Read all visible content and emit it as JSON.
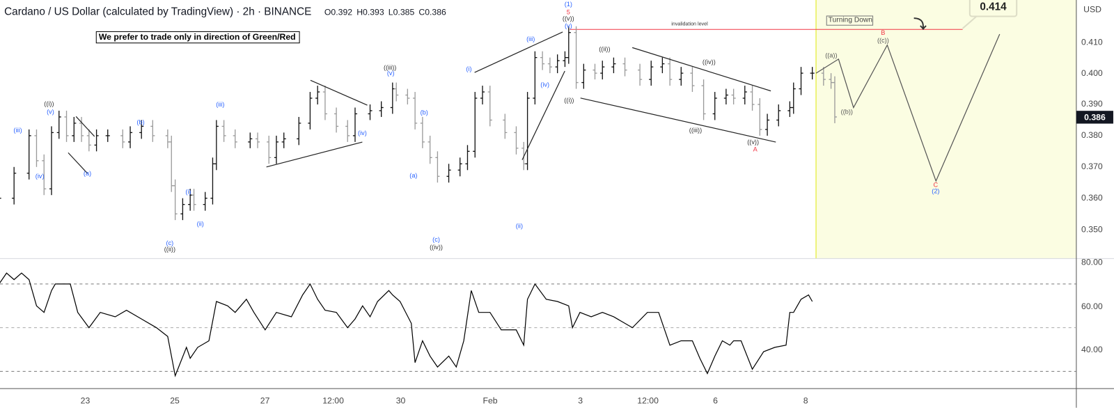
{
  "header": {
    "title": "Cardano / US Dollar (calculated by TradingView) · 2h · BINANCE",
    "open": "O0.392",
    "high": "H0.393",
    "low": "L0.385",
    "close": "C0.386"
  },
  "note": "We prefer to trade only in direction of Green/Red",
  "annotations": {
    "invalidation_label": "invalidation level",
    "invalidation_price": 0.414,
    "target_callout": "0.414",
    "turning_label": "Turning Down",
    "arrow_icon": "curved-arrow-down-right",
    "highlight_color": "#fbfde2",
    "invalidation_color": "#f23645",
    "wave_labels": [
      "(iii)",
      "(iv)",
      "((i))",
      "(v)",
      "(a)",
      "(b)",
      "(iii)",
      "(i)",
      "(ii)",
      "(c)",
      "((ii))",
      "((iii))",
      "(v)",
      "(iv)",
      "(a)",
      "(b)",
      "(c)",
      "((iv))",
      "(i)",
      "(iii)",
      "(iv)",
      "(ii)",
      "(1)",
      "5",
      "((v))",
      "(v)",
      "((i))",
      "((ii))",
      "((iv))",
      "((iii))",
      "((v))",
      "A",
      "((a))",
      "((b))",
      "((c))",
      "B",
      "C",
      "(2)"
    ]
  },
  "chart_data": [
    {
      "type": "ohlc",
      "title": "Cardano / US Dollar (calculated by TradingView) · 2h · BINANCE",
      "y_unit": "USD",
      "ylim": [
        0.343,
        0.418
      ],
      "y_ticks": [
        "0.410",
        "0.400",
        "0.390",
        "0.380",
        "0.370",
        "0.360",
        "0.350"
      ],
      "x_ticks": [
        "23",
        "25",
        "27",
        "12:00",
        "30",
        "Feb",
        "3",
        "12:00",
        "6",
        "8"
      ],
      "last_price": "0.386",
      "closes": [
        [
          "Jan 21 02:00",
          0.36
        ],
        [
          "Jan 21 10:00",
          0.368
        ],
        [
          "Jan 21 18:00",
          0.38
        ],
        [
          "Jan 21 22:00",
          0.372
        ],
        [
          "Jan 22 02:00",
          0.363
        ],
        [
          "Jan 22 06:00",
          0.381
        ],
        [
          "Jan 22 10:00",
          0.386
        ],
        [
          "Jan 22 14:00",
          0.38
        ],
        [
          "Jan 22 18:00",
          0.384
        ],
        [
          "Jan 22 22:00",
          0.38
        ],
        [
          "Jan 23 02:00",
          0.377
        ],
        [
          "Jan 23 06:00",
          0.38
        ],
        [
          "Jan 23 12:00",
          0.38
        ],
        [
          "Jan 23 20:00",
          0.378
        ],
        [
          "Jan 24 00:00",
          0.381
        ],
        [
          "Jan 24 06:00",
          0.383
        ],
        [
          "Jan 24 12:00",
          0.38
        ],
        [
          "Jan 24 20:00",
          0.378
        ],
        [
          "Jan 24 22:00",
          0.364
        ],
        [
          "Jan 25 00:00",
          0.355
        ],
        [
          "Jan 25 04:00",
          0.358
        ],
        [
          "Jan 25 08:00",
          0.361
        ],
        [
          "Jan 25 10:00",
          0.358
        ],
        [
          "Jan 25 16:00",
          0.36
        ],
        [
          "Jan 25 20:00",
          0.371
        ],
        [
          "Jan 25 22:00",
          0.383
        ],
        [
          "Jan 26 02:00",
          0.38
        ],
        [
          "Jan 26 08:00",
          0.378
        ],
        [
          "Jan 26 16:00",
          0.379
        ],
        [
          "Jan 26 20:00",
          0.378
        ],
        [
          "Jan 27 02:00",
          0.373
        ],
        [
          "Jan 27 06:00",
          0.378
        ],
        [
          "Jan 27 10:00",
          0.379
        ],
        [
          "Jan 27 18:00",
          0.384
        ],
        [
          "Jan 28 00:00",
          0.392
        ],
        [
          "Jan 28 04:00",
          0.394
        ],
        [
          "Jan 28 08:00",
          0.387
        ],
        [
          "Jan 28 14:00",
          0.383
        ],
        [
          "Jan 28 20:00",
          0.38
        ],
        [
          "Jan 29 00:00",
          0.387
        ],
        [
          "Jan 29 08:00",
          0.388
        ],
        [
          "Jan 29 14:00",
          0.389
        ],
        [
          "Jan 29 20:00",
          0.395
        ],
        [
          "Jan 29 22:00",
          0.393
        ],
        [
          "Jan 30 04:00",
          0.392
        ],
        [
          "Jan 30 08:00",
          0.384
        ],
        [
          "Jan 30 12:00",
          0.378
        ],
        [
          "Jan 30 16:00",
          0.373
        ],
        [
          "Jan 30 20:00",
          0.367
        ],
        [
          "Jan 31 02:00",
          0.369
        ],
        [
          "Jan 31 08:00",
          0.371
        ],
        [
          "Jan 31 12:00",
          0.375
        ],
        [
          "Jan 31 16:00",
          0.392
        ],
        [
          "Jan 31 20:00",
          0.394
        ],
        [
          "Feb 1 00:00",
          0.385
        ],
        [
          "Feb 1 08:00",
          0.381
        ],
        [
          "Feb 1 14:00",
          0.376
        ],
        [
          "Feb 1 18:00",
          0.371
        ],
        [
          "Feb 1 20:00",
          0.392
        ],
        [
          "Feb 2 00:00",
          0.405
        ],
        [
          "Feb 2 04:00",
          0.403
        ],
        [
          "Feb 2 08:00",
          0.402
        ],
        [
          "Feb 2 12:00",
          0.404
        ],
        [
          "Feb 2 16:00",
          0.405
        ],
        [
          "Feb 2 18:00",
          0.413
        ],
        [
          "Feb 2 22:00",
          0.397
        ],
        [
          "Feb 3 02:00",
          0.401
        ],
        [
          "Feb 3 08:00",
          0.4
        ],
        [
          "Feb 3 12:00",
          0.402
        ],
        [
          "Feb 3 18:00",
          0.403
        ],
        [
          "Feb 4 00:00",
          0.401
        ],
        [
          "Feb 4 08:00",
          0.398
        ],
        [
          "Feb 4 14:00",
          0.402
        ],
        [
          "Feb 4 20:00",
          0.403
        ],
        [
          "Feb 5 00:00",
          0.398
        ],
        [
          "Feb 5 06:00",
          0.4
        ],
        [
          "Feb 5 12:00",
          0.396
        ],
        [
          "Feb 5 18:00",
          0.387
        ],
        [
          "Feb 6 00:00",
          0.392
        ],
        [
          "Feb 6 06:00",
          0.393
        ],
        [
          "Feb 6 10:00",
          0.392
        ],
        [
          "Feb 6 16:00",
          0.394
        ],
        [
          "Feb 6 20:00",
          0.39
        ],
        [
          "Feb 7 00:00",
          0.382
        ],
        [
          "Feb 7 04:00",
          0.385
        ],
        [
          "Feb 7 10:00",
          0.388
        ],
        [
          "Feb 7 16:00",
          0.389
        ],
        [
          "Feb 7 18:00",
          0.395
        ],
        [
          "Feb 7 22:00",
          0.4
        ],
        [
          "Feb 8 04:00",
          0.4
        ],
        [
          "Feb 8 10:00",
          0.398
        ],
        [
          "Feb 8 14:00",
          0.397
        ],
        [
          "Feb 8 16:00",
          0.386
        ]
      ],
      "projection": [
        [
          "Feb 8 06:00",
          0.4
        ],
        [
          "Feb 8 18:00",
          0.4045
        ],
        [
          "Feb 9 02:00",
          0.389
        ],
        [
          "Feb 9 20:00",
          0.409
        ],
        [
          "Feb 10 22:00",
          0.3655
        ],
        [
          "Feb 12 08:00",
          0.4125
        ]
      ],
      "highlight_from": "Feb 8 06:00"
    },
    {
      "type": "line",
      "indicator": "RSI",
      "ylim": [
        22,
        84
      ],
      "y_ticks": [
        "80.00",
        "60.00",
        "40.00"
      ],
      "levels": [
        70,
        50,
        30
      ],
      "values": [
        [
          "Jan 21 02:00",
          70
        ],
        [
          "Jan 21 06:00",
          75
        ],
        [
          "Jan 21 10:00",
          72
        ],
        [
          "Jan 21 14:00",
          75
        ],
        [
          "Jan 21 18:00",
          72
        ],
        [
          "Jan 21 22:00",
          60
        ],
        [
          "Jan 22 02:00",
          57
        ],
        [
          "Jan 22 06:00",
          67
        ],
        [
          "Jan 22 08:00",
          70
        ],
        [
          "Jan 22 16:00",
          70
        ],
        [
          "Jan 22 20:00",
          57
        ],
        [
          "Jan 23 02:00",
          50
        ],
        [
          "Jan 23 08:00",
          57
        ],
        [
          "Jan 23 16:00",
          55
        ],
        [
          "Jan 23 22:00",
          58
        ],
        [
          "Jan 24 06:00",
          54
        ],
        [
          "Jan 24 14:00",
          50
        ],
        [
          "Jan 24 20:00",
          46
        ],
        [
          "Jan 25 00:00",
          28
        ],
        [
          "Jan 25 06:00",
          41
        ],
        [
          "Jan 25 08:00",
          36
        ],
        [
          "Jan 25 12:00",
          41
        ],
        [
          "Jan 25 18:00",
          44
        ],
        [
          "Jan 25 22:00",
          62
        ],
        [
          "Jan 26 04:00",
          60
        ],
        [
          "Jan 26 08:00",
          57
        ],
        [
          "Jan 26 14:00",
          63
        ],
        [
          "Jan 26 18:00",
          57
        ],
        [
          "Jan 27 00:00",
          49
        ],
        [
          "Jan 27 06:00",
          57
        ],
        [
          "Jan 27 14:00",
          55
        ],
        [
          "Jan 27 20:00",
          65
        ],
        [
          "Jan 28 00:00",
          70
        ],
        [
          "Jan 28 04:00",
          63
        ],
        [
          "Jan 28 08:00",
          58
        ],
        [
          "Jan 28 14:00",
          57
        ],
        [
          "Jan 28 20:00",
          50
        ],
        [
          "Jan 29 00:00",
          54
        ],
        [
          "Jan 29 04:00",
          60
        ],
        [
          "Jan 29 08:00",
          55
        ],
        [
          "Jan 29 12:00",
          62
        ],
        [
          "Jan 29 18:00",
          67
        ],
        [
          "Jan 29 20:00",
          65
        ],
        [
          "Jan 30 00:00",
          62
        ],
        [
          "Jan 30 06:00",
          52
        ],
        [
          "Jan 30 08:00",
          34
        ],
        [
          "Jan 30 12:00",
          44
        ],
        [
          "Jan 30 16:00",
          37
        ],
        [
          "Jan 30 20:00",
          32
        ],
        [
          "Jan 31 02:00",
          37
        ],
        [
          "Jan 31 06:00",
          32
        ],
        [
          "Jan 31 10:00",
          44
        ],
        [
          "Jan 31 14:00",
          67
        ],
        [
          "Jan 31 18:00",
          57
        ],
        [
          "Feb 1 00:00",
          57
        ],
        [
          "Feb 1 06:00",
          49
        ],
        [
          "Feb 1 14:00",
          49
        ],
        [
          "Feb 1 18:00",
          42
        ],
        [
          "Feb 1 20:00",
          63
        ],
        [
          "Feb 2 00:00",
          70
        ],
        [
          "Feb 2 06:00",
          63
        ],
        [
          "Feb 2 12:00",
          62
        ],
        [
          "Feb 2 18:00",
          60
        ],
        [
          "Feb 2 20:00",
          50
        ],
        [
          "Feb 3 00:00",
          57
        ],
        [
          "Feb 3 06:00",
          55
        ],
        [
          "Feb 3 12:00",
          57
        ],
        [
          "Feb 3 18:00",
          55
        ],
        [
          "Feb 4 00:00",
          52
        ],
        [
          "Feb 4 04:00",
          50
        ],
        [
          "Feb 4 12:00",
          57
        ],
        [
          "Feb 4 18:00",
          57
        ],
        [
          "Feb 4 22:00",
          47
        ],
        [
          "Feb 5 00:00",
          42
        ],
        [
          "Feb 5 06:00",
          44
        ],
        [
          "Feb 5 12:00",
          44
        ],
        [
          "Feb 5 16:00",
          36
        ],
        [
          "Feb 5 20:00",
          29
        ],
        [
          "Feb 6 00:00",
          37
        ],
        [
          "Feb 6 04:00",
          44
        ],
        [
          "Feb 6 08:00",
          42
        ],
        [
          "Feb 6 10:00",
          44
        ],
        [
          "Feb 6 14:00",
          44
        ],
        [
          "Feb 6 20:00",
          31
        ],
        [
          "Feb 7 02:00",
          39
        ],
        [
          "Feb 7 08:00",
          41
        ],
        [
          "Feb 7 14:00",
          42
        ],
        [
          "Feb 7 16:00",
          57
        ],
        [
          "Feb 7 18:00",
          57
        ],
        [
          "Feb 7 22:00",
          63
        ],
        [
          "Feb 8 02:00",
          65
        ],
        [
          "Feb 8 04:00",
          62
        ]
      ]
    }
  ]
}
